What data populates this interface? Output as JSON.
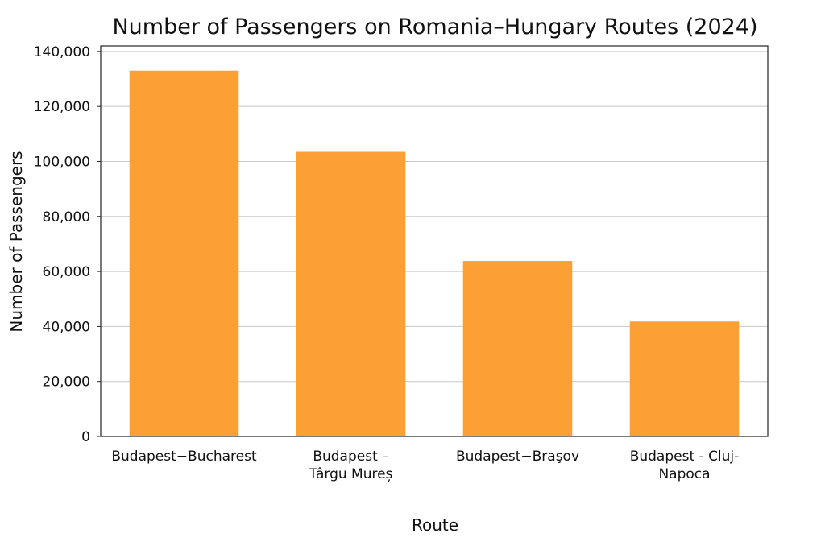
{
  "chart_data": {
    "type": "bar",
    "title": "Number of Passengers on Romania–Hungary Routes (2024)",
    "xlabel": "Route",
    "ylabel": "Number of Passengers",
    "categories": [
      [
        "Budapest−Bucharest"
      ],
      [
        "Budapest –",
        "Târgu Mureș"
      ],
      [
        "Budapest−Braşov"
      ],
      [
        "Budapest - Cluj-",
        "Napoca"
      ]
    ],
    "values": [
      133000,
      103500,
      63800,
      41800
    ],
    "ylim": [
      0,
      142000
    ],
    "yticks": [
      0,
      20000,
      40000,
      60000,
      80000,
      100000,
      120000,
      140000
    ],
    "ytick_labels": [
      "0",
      "20,000",
      "40,000",
      "60,000",
      "80,000",
      "100,000",
      "120,000",
      "140,000"
    ],
    "grid": "horizontal",
    "bar_color": "#fca036",
    "legend": "none"
  }
}
